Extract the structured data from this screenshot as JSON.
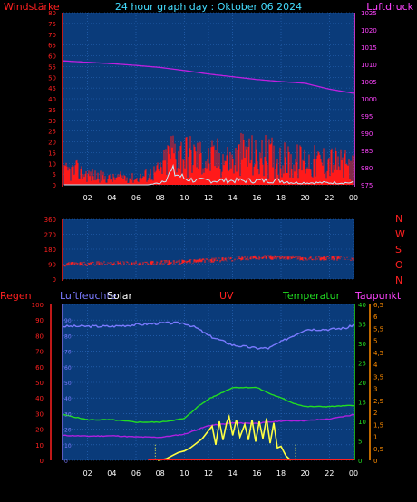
{
  "title": "24 hour graph day : Oktober 06 2024",
  "colors": {
    "background": "#000000",
    "plot": "#0a3b7a",
    "grid": "#2d6cc0",
    "wind": "#ff1a1a",
    "gust": "#ff1a1a",
    "avgwind": "#bfefff",
    "pressure": "#c020e0",
    "direction": "#ff2020",
    "humidity": "#7a7aff",
    "temperature": "#22dd22",
    "dewpoint": "#b020e0",
    "solar": "#ffff40",
    "uv": "#ff2020",
    "labelRed": "#ff2020",
    "labelCyan": "#44ddff",
    "labelPink": "#ff44ff",
    "labelYellow": "#ffffff",
    "labelGreen": "#22dd22",
    "labelOrange": "#ff8c00",
    "labelBlue": "#7a7aff"
  },
  "chart_data": [
    {
      "type": "line",
      "title": "24 hour graph day : Oktober 06 2024",
      "ylabel": "Windstärke",
      "y2label": "Luftdruck",
      "ylim": [
        0,
        80
      ],
      "y_ticks": [
        "0",
        "5",
        "10",
        "15",
        "20",
        "25",
        "30",
        "35",
        "40",
        "45",
        "50",
        "55",
        "60",
        "65",
        "70",
        "75",
        "80"
      ],
      "y2lim": [
        975,
        1025
      ],
      "y2_ticks": [
        "975",
        "980",
        "985",
        "990",
        "995",
        "1000",
        "1005",
        "1010",
        "1015",
        "1020",
        "1025"
      ],
      "x_ticks": [
        "02",
        "04",
        "06",
        "08",
        "10",
        "12",
        "14",
        "16",
        "18",
        "20",
        "22",
        "00"
      ],
      "series": [
        {
          "name": "Wind",
          "x": [
            0,
            1,
            2,
            3,
            4,
            5,
            6,
            7,
            8,
            9,
            10,
            11,
            12,
            13,
            14,
            15,
            16,
            17,
            18,
            19,
            20,
            21,
            22,
            23,
            24
          ],
          "values": [
            6,
            7,
            5,
            4,
            3,
            4,
            3,
            5,
            7,
            17,
            15,
            14,
            12,
            14,
            11,
            16,
            13,
            14,
            12,
            11,
            12,
            11,
            12,
            10,
            9
          ]
        },
        {
          "name": "Average wind",
          "x": [
            0,
            1,
            2,
            3,
            4,
            5,
            6,
            7,
            8,
            9,
            10,
            11,
            12,
            13,
            14,
            15,
            16,
            17,
            18,
            19,
            20,
            21,
            22,
            23,
            24
          ],
          "values": [
            0,
            0,
            0,
            0,
            0,
            0,
            0,
            0,
            1,
            6,
            3,
            2,
            2,
            2,
            2,
            2,
            2,
            2,
            2,
            1,
            1,
            1,
            1,
            1,
            1
          ]
        },
        {
          "name": "Pressure",
          "x": [
            0,
            2,
            4,
            6,
            8,
            10,
            12,
            14,
            16,
            18,
            20,
            22,
            24
          ],
          "values": [
            1011,
            1010.6,
            1010.2,
            1009.7,
            1009.1,
            1008.2,
            1007.2,
            1006.4,
            1005.6,
            1005.0,
            1004.5,
            1002.8,
            1001.6
          ]
        }
      ]
    },
    {
      "type": "line",
      "ylabel": "",
      "ylim": [
        0,
        360
      ],
      "y_ticks": [
        "0",
        "90",
        "180",
        "270",
        "360"
      ],
      "y2_ticks": [
        "N",
        "W",
        "S",
        "O",
        "N"
      ],
      "x_ticks": [],
      "series": [
        {
          "name": "Wind direction",
          "x": [
            0,
            2,
            4,
            6,
            8,
            10,
            12,
            14,
            16,
            18,
            20,
            22,
            24
          ],
          "values": [
            88,
            92,
            95,
            95,
            98,
            103,
            112,
            120,
            130,
            132,
            125,
            125,
            122
          ]
        }
      ]
    },
    {
      "type": "line",
      "labels": [
        "Regen",
        "Luftfeuchte",
        "Solar",
        "UV",
        "Temperatur",
        "Taupunkt"
      ],
      "ylim": [
        0,
        100
      ],
      "y_ticks": [
        "0",
        "10",
        "20",
        "30",
        "40",
        "50",
        "60",
        "70",
        "80",
        "90",
        "100"
      ],
      "y_hum_ticks": [
        "0",
        "10",
        "20",
        "30",
        "40",
        "50",
        "60",
        "70",
        "80",
        "90"
      ],
      "y_temp_ticks": [
        "0",
        "5",
        "10",
        "15",
        "20",
        "25",
        "30",
        "35",
        "40"
      ],
      "y_uv_ticks": [
        "0",
        "0,5",
        "1",
        "1,5",
        "2",
        "2,5",
        "3",
        "3,5",
        "4",
        "4,5",
        "5",
        "5,5",
        "6",
        "6,5"
      ],
      "x_ticks": [
        "02",
        "04",
        "06",
        "08",
        "10",
        "12",
        "14",
        "16",
        "18",
        "20",
        "22",
        "00"
      ],
      "series": [
        {
          "name": "Luftfeuchte",
          "x": [
            0,
            2,
            4,
            6,
            8,
            10,
            11,
            12,
            13,
            14,
            15,
            16,
            17,
            18,
            19,
            20,
            22,
            23.5,
            24
          ],
          "values": [
            86,
            86,
            86,
            87,
            88,
            88,
            85,
            80,
            77,
            74,
            73,
            72,
            72,
            76,
            80,
            84,
            84,
            85,
            87
          ]
        },
        {
          "name": "Temperatur",
          "x": [
            0,
            2,
            4,
            6,
            8,
            10,
            11,
            12,
            13,
            14,
            15,
            16,
            17,
            18,
            19,
            20,
            22,
            24
          ],
          "values": [
            11.7,
            10.4,
            10.4,
            9.8,
            9.8,
            10.7,
            13.5,
            15.7,
            17.2,
            18.7,
            18.7,
            18.7,
            17.2,
            16.0,
            14.7,
            13.8,
            13.8,
            14.1
          ]
        },
        {
          "name": "Taupunkt",
          "x": [
            0,
            2,
            4,
            6,
            8,
            10,
            12,
            14,
            16,
            18,
            20,
            22,
            24
          ],
          "values": [
            6.4,
            6.2,
            6.3,
            6.0,
            5.9,
            6.7,
            8.9,
            9.6,
            9.5,
            10.1,
            10.2,
            10.6,
            11.7
          ]
        },
        {
          "name": "Solar",
          "x": [
            7.8,
            8.5,
            9.0,
            9.5,
            10.0,
            10.5,
            11.0,
            11.5,
            12.0,
            12.3,
            12.6,
            12.9,
            13.2,
            13.5,
            13.7,
            14.0,
            14.3,
            14.6,
            15.0,
            15.3,
            15.6,
            15.9,
            16.2,
            16.5,
            16.8,
            17.1,
            17.4,
            17.7,
            18.0,
            18.4,
            18.8
          ],
          "values": [
            0,
            1,
            3,
            5,
            6,
            8,
            11,
            14,
            19,
            22,
            10,
            25,
            13,
            24,
            28,
            16,
            26,
            15,
            23,
            13,
            26,
            12,
            25,
            14,
            27,
            11,
            24,
            8,
            9,
            3,
            0
          ]
        },
        {
          "name": "UV",
          "x": [
            7,
            24
          ],
          "values": [
            0,
            0
          ]
        }
      ]
    }
  ]
}
